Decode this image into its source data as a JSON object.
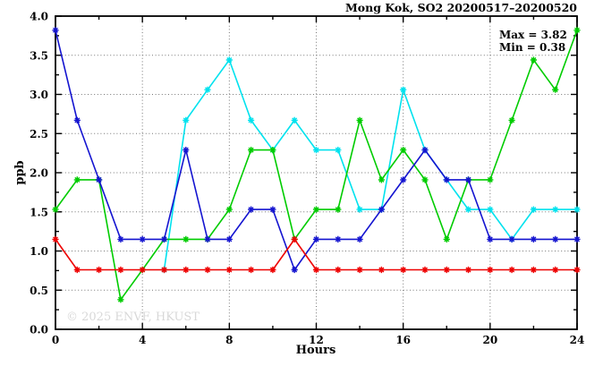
{
  "chart_data": {
    "type": "line",
    "title": "Mong Kok, SO2 20200517–20200520",
    "xlabel": "Hours",
    "ylabel": "ppb",
    "watermark": "© 2025 ENVF, HKUST",
    "annotations": {
      "max_label": "Max = 3.82",
      "min_label": "Min = 0.38"
    },
    "max": 3.82,
    "min": 0.38,
    "xlim": [
      0,
      24
    ],
    "ylim": [
      0.0,
      4.0
    ],
    "x_ticks": {
      "values": [
        0,
        4,
        8,
        12,
        16,
        20,
        24
      ],
      "labels": [
        "0",
        "4",
        "8",
        "12",
        "16",
        "20",
        "24"
      ]
    },
    "y_ticks": {
      "values": [
        0,
        0.5,
        1,
        1.5,
        2,
        2.5,
        3,
        3.5,
        4
      ],
      "labels": [
        "0.0",
        "0.5",
        "1.0",
        "1.5",
        "2.0",
        "2.5",
        "3.0",
        "3.5",
        "4.0"
      ]
    },
    "x_minor_step": 2,
    "y_minor_step": 0.25,
    "grid": {
      "x_at": [
        4,
        8,
        12,
        16,
        20
      ],
      "y_at": [
        0.5,
        1.0,
        1.5,
        2.0,
        2.5,
        3.0,
        3.5
      ],
      "style": "dotted",
      "color": "#777777"
    },
    "legend": "none",
    "x": [
      0,
      1,
      2,
      3,
      4,
      5,
      6,
      7,
      8,
      9,
      10,
      11,
      12,
      13,
      14,
      15,
      16,
      17,
      18,
      19,
      20,
      21,
      22,
      23,
      24
    ],
    "series": [
      {
        "name": "cyan-series",
        "color": "#00e2ee",
        "values": [
          null,
          null,
          null,
          null,
          null,
          0.76,
          2.67,
          3.06,
          3.44,
          2.67,
          2.29,
          2.67,
          2.29,
          2.29,
          1.53,
          1.53,
          3.06,
          2.29,
          1.91,
          1.53,
          1.53,
          1.15,
          1.53,
          1.53,
          1.53
        ]
      },
      {
        "name": "green-series",
        "color": "#00cc00",
        "values": [
          1.53,
          1.91,
          1.91,
          0.38,
          0.76,
          1.15,
          1.15,
          1.15,
          1.53,
          2.29,
          2.29,
          1.15,
          1.53,
          1.53,
          2.67,
          1.91,
          2.29,
          1.91,
          1.15,
          1.91,
          1.91,
          2.67,
          3.44,
          3.06,
          3.82
        ]
      },
      {
        "name": "blue-series",
        "color": "#1414d0",
        "values": [
          3.82,
          2.67,
          1.91,
          1.15,
          1.15,
          1.15,
          2.29,
          1.15,
          1.15,
          1.53,
          1.53,
          0.76,
          1.15,
          1.15,
          1.15,
          1.53,
          1.91,
          2.29,
          1.91,
          1.91,
          1.15,
          1.15,
          1.15,
          1.15,
          1.15
        ]
      },
      {
        "name": "red-series",
        "color": "#ee0000",
        "values": [
          1.15,
          0.76,
          0.76,
          0.76,
          0.76,
          0.76,
          0.76,
          0.76,
          0.76,
          0.76,
          0.76,
          1.15,
          0.76,
          0.76,
          0.76,
          0.76,
          0.76,
          0.76,
          0.76,
          0.76,
          0.76,
          0.76,
          0.76,
          0.76,
          0.76
        ]
      }
    ]
  }
}
